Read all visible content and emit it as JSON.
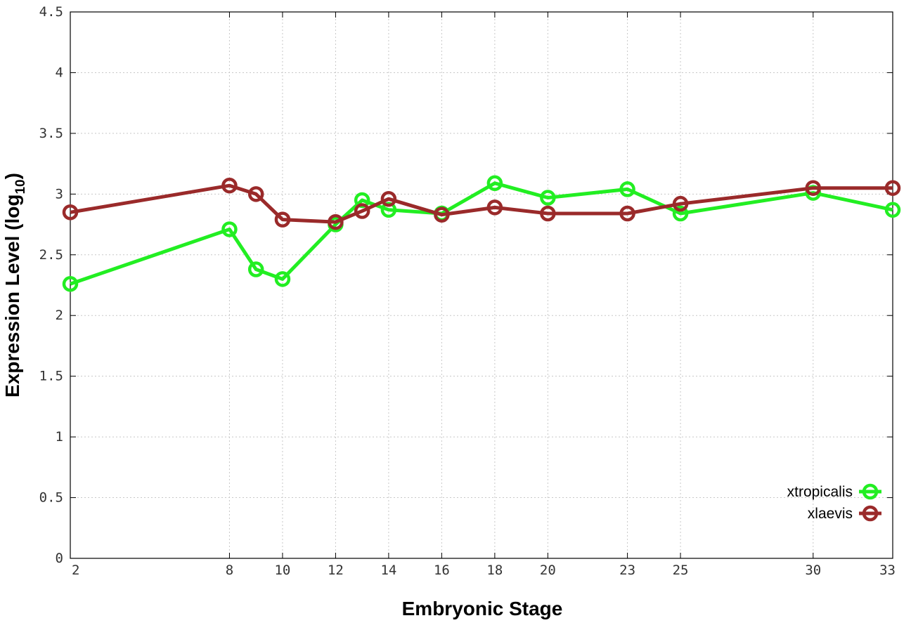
{
  "chart_data": {
    "type": "line",
    "title": "",
    "xlabel": "Embryonic Stage",
    "ylabel_main": "Expression Level (log",
    "ylabel_sub": "10",
    "ylabel_close": ")",
    "x": [
      2,
      8,
      9,
      10,
      12,
      13,
      14,
      16,
      18,
      20,
      23,
      25,
      30,
      33
    ],
    "x_ticks": [
      2,
      8,
      10,
      12,
      14,
      16,
      18,
      20,
      23,
      25,
      30,
      33
    ],
    "y_ticks": [
      "0",
      "0.5",
      "1",
      "1.5",
      "2",
      "2.5",
      "3",
      "3.5",
      "4",
      "4.5"
    ],
    "xlim": [
      2,
      33
    ],
    "ylim": [
      0,
      4.5
    ],
    "grid": true,
    "legend_position": "bottom-right",
    "series": [
      {
        "name": "xtropicalis",
        "color": "#22ee22",
        "values": [
          2.26,
          2.71,
          2.38,
          2.3,
          2.75,
          2.95,
          2.87,
          2.84,
          3.09,
          2.97,
          3.04,
          2.84,
          3.01,
          2.87
        ]
      },
      {
        "name": "xlaevis",
        "color": "#9a2a2a",
        "values": [
          2.85,
          3.07,
          3.0,
          2.79,
          2.77,
          2.86,
          2.96,
          2.83,
          2.89,
          2.84,
          2.84,
          2.92,
          3.05,
          3.05
        ]
      }
    ]
  }
}
